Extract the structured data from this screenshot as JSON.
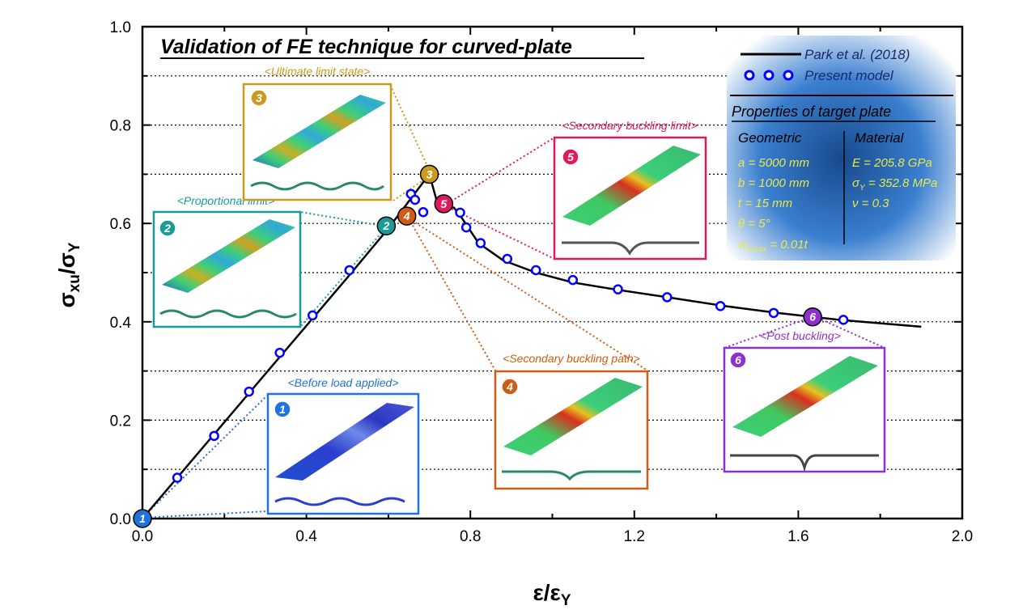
{
  "chart_data": {
    "type": "line",
    "title": "Validation of FE technique for curved-plate",
    "xlabel": "ε/εY",
    "ylabel": "σxu/σY",
    "xlim": [
      0.0,
      2.0
    ],
    "ylim": [
      0.0,
      1.0
    ],
    "x_ticks": [
      "0.0",
      "0.4",
      "0.8",
      "1.2",
      "1.6",
      "2.0"
    ],
    "y_ticks": [
      "0.0",
      "0.2",
      "0.4",
      "0.6",
      "0.8",
      "1.0"
    ],
    "grid": "horizontal dotted",
    "legend_position": "top-right",
    "series": [
      {
        "name": "Park et al. (2018)",
        "style": "solid-line",
        "color": "#000000",
        "x": [
          0.0,
          0.1,
          0.2,
          0.3,
          0.4,
          0.5,
          0.6,
          0.65,
          0.7,
          0.72,
          0.74,
          0.76,
          0.78,
          0.82,
          0.88,
          0.96,
          1.05,
          1.16,
          1.28,
          1.42,
          1.55,
          1.7,
          1.8,
          1.9
        ],
        "y": [
          0.0,
          0.098,
          0.196,
          0.294,
          0.392,
          0.49,
          0.59,
          0.645,
          0.7,
          0.64,
          0.635,
          0.632,
          0.61,
          0.56,
          0.525,
          0.5,
          0.48,
          0.465,
          0.45,
          0.432,
          0.418,
          0.404,
          0.397,
          0.39
        ]
      },
      {
        "name": "Present model",
        "style": "markers",
        "color": "#0000ff",
        "x": [
          0.0,
          0.085,
          0.175,
          0.26,
          0.335,
          0.415,
          0.505,
          0.595,
          0.655,
          0.665,
          0.685,
          0.775,
          0.79,
          0.825,
          0.89,
          0.96,
          1.05,
          1.16,
          1.28,
          1.41,
          1.54,
          1.71
        ],
        "y": [
          0.0,
          0.083,
          0.168,
          0.258,
          0.337,
          0.413,
          0.505,
          0.595,
          0.66,
          0.648,
          0.623,
          0.622,
          0.592,
          0.56,
          0.528,
          0.505,
          0.485,
          0.466,
          0.45,
          0.432,
          0.418,
          0.404
        ]
      }
    ],
    "annotations": [
      {
        "num": "1",
        "label": "<Before load applied>",
        "x": 0.0,
        "y": 0.0,
        "color": "#1e73dc"
      },
      {
        "num": "2",
        "label": "<Proportional limit>",
        "x": 0.595,
        "y": 0.595,
        "color": "#199c97"
      },
      {
        "num": "3",
        "label": "<Ultimate limit state>",
        "x": 0.7,
        "y": 0.7,
        "color": "#c99a1e"
      },
      {
        "num": "4",
        "label": "<Secondary buckling path>",
        "x": 0.645,
        "y": 0.615,
        "color": "#cf5b14"
      },
      {
        "num": "5",
        "label": "<Secondary buckling limit>",
        "x": 0.735,
        "y": 0.64,
        "color": "#e0195f"
      },
      {
        "num": "6",
        "label": "<Post buckling>",
        "x": 1.635,
        "y": 0.41,
        "color": "#8e2fd2"
      }
    ]
  },
  "properties": {
    "title": "Properties of target plate",
    "geometric_heading": "Geometric",
    "material_heading": "Material",
    "geometric": [
      "a = 5000 mm",
      "b = 1000 mm",
      "t = 15 mm"
    ],
    "theta": "θ = 5°",
    "wo": "w",
    "wo_sub": "omax",
    "wo_value": " = 0.01t",
    "material_e": "E = 205.8 GPa",
    "material_sigma": "σ",
    "material_sigma_sub": "Y",
    "material_sigma_value": " = 352.8 MPa",
    "material_nu": "ν = 0.3"
  },
  "colors": {
    "blue": "#1e73dc",
    "teal": "#199c97",
    "gold": "#c99a1e",
    "orange": "#cf5b14",
    "pink": "#e0195f",
    "purple": "#8e2fd2",
    "marker": "#0000ff",
    "info_text": "#e8e84a"
  }
}
